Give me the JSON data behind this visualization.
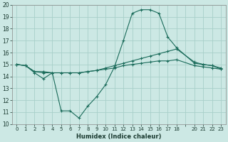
{
  "title": "",
  "xlabel": "Humidex (Indice chaleur)",
  "ylabel": "",
  "xlim": [
    -0.5,
    23.5
  ],
  "ylim": [
    10,
    20
  ],
  "yticks": [
    10,
    11,
    12,
    13,
    14,
    15,
    16,
    17,
    18,
    19,
    20
  ],
  "xticks": [
    0,
    1,
    2,
    3,
    4,
    5,
    6,
    7,
    8,
    9,
    10,
    11,
    12,
    13,
    14,
    15,
    16,
    17,
    18,
    19,
    20,
    21,
    22,
    23
  ],
  "xtick_labels": [
    "0",
    "1",
    "2",
    "3",
    "4",
    "5",
    "6",
    "7",
    "8",
    "9",
    "10",
    "11",
    "12",
    "13",
    "14",
    "15",
    "16",
    "17",
    "18",
    "",
    "20",
    "21",
    "22",
    "23"
  ],
  "bg_color": "#cce8e4",
  "line_color": "#1a6b5a",
  "grid_color": "#a8cfc9",
  "line1_x": [
    0,
    1,
    2,
    3,
    4,
    5,
    6,
    7,
    8,
    9,
    10,
    11,
    12,
    13,
    14,
    15,
    16,
    17,
    18,
    20,
    21,
    22,
    23
  ],
  "line1_y": [
    15.0,
    14.9,
    14.3,
    13.8,
    14.3,
    11.1,
    11.1,
    10.5,
    11.5,
    12.3,
    13.3,
    14.8,
    17.0,
    19.3,
    19.6,
    19.6,
    19.3,
    17.3,
    16.4,
    15.1,
    15.0,
    14.9,
    14.6
  ],
  "line2_x": [
    0,
    1,
    2,
    3,
    4,
    5,
    6,
    7,
    8,
    9,
    10,
    11,
    12,
    13,
    14,
    15,
    16,
    17,
    18,
    20,
    21,
    22,
    23
  ],
  "line2_y": [
    15.0,
    14.9,
    14.4,
    14.4,
    14.3,
    14.3,
    14.3,
    14.3,
    14.4,
    14.5,
    14.7,
    14.9,
    15.1,
    15.3,
    15.5,
    15.7,
    15.9,
    16.1,
    16.3,
    15.2,
    15.0,
    14.9,
    14.7
  ],
  "line3_x": [
    0,
    1,
    2,
    3,
    4,
    5,
    6,
    7,
    8,
    9,
    10,
    11,
    12,
    13,
    14,
    15,
    16,
    17,
    18,
    20,
    21,
    22,
    23
  ],
  "line3_y": [
    15.0,
    14.9,
    14.4,
    14.3,
    14.3,
    14.3,
    14.3,
    14.3,
    14.4,
    14.5,
    14.6,
    14.7,
    14.9,
    15.0,
    15.1,
    15.2,
    15.3,
    15.3,
    15.4,
    14.9,
    14.8,
    14.7,
    14.6
  ]
}
